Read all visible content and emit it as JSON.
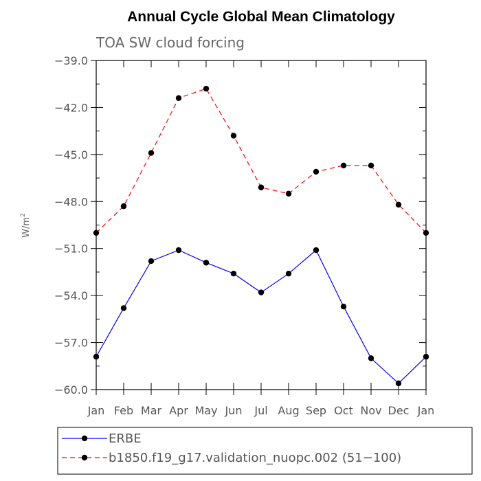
{
  "chart_data": {
    "type": "line",
    "title": "Annual Cycle Global Mean Climatology",
    "subtitle": "TOA SW cloud forcing",
    "ylabel": "W/m",
    "ylabel_sup": "2",
    "xlabel": "",
    "categories": [
      "Jan",
      "Feb",
      "Mar",
      "Apr",
      "May",
      "Jun",
      "Jul",
      "Aug",
      "Sep",
      "Oct",
      "Nov",
      "Dec",
      "Jan"
    ],
    "ylim": [
      -60.0,
      -39.0
    ],
    "yticks": [
      "-39.0",
      "-42.0",
      "-45.0",
      "-48.0",
      "-51.0",
      "-54.0",
      "-57.0",
      "-60.0"
    ],
    "ytick_values": [
      -39,
      -42,
      -45,
      -48,
      -51,
      -54,
      -57,
      -60
    ],
    "grid": false,
    "legend_position": "bottom",
    "series": [
      {
        "name": "ERBE",
        "color": "#0000ff",
        "dash": "solid",
        "values": [
          -57.9,
          -54.8,
          -51.8,
          -51.1,
          -51.9,
          -52.6,
          -53.8,
          -52.6,
          -51.1,
          -54.7,
          -58.0,
          -59.6,
          -57.9
        ]
      },
      {
        "name": "b1850.f19_g17.validation_nuopc.002 (51-100)",
        "color": "#ff0000",
        "dash": "dashed",
        "values": [
          -50.0,
          -48.3,
          -44.9,
          -41.4,
          -40.8,
          -43.8,
          -47.1,
          -47.5,
          -46.1,
          -45.7,
          -45.7,
          -48.2,
          -50.0
        ]
      }
    ]
  }
}
